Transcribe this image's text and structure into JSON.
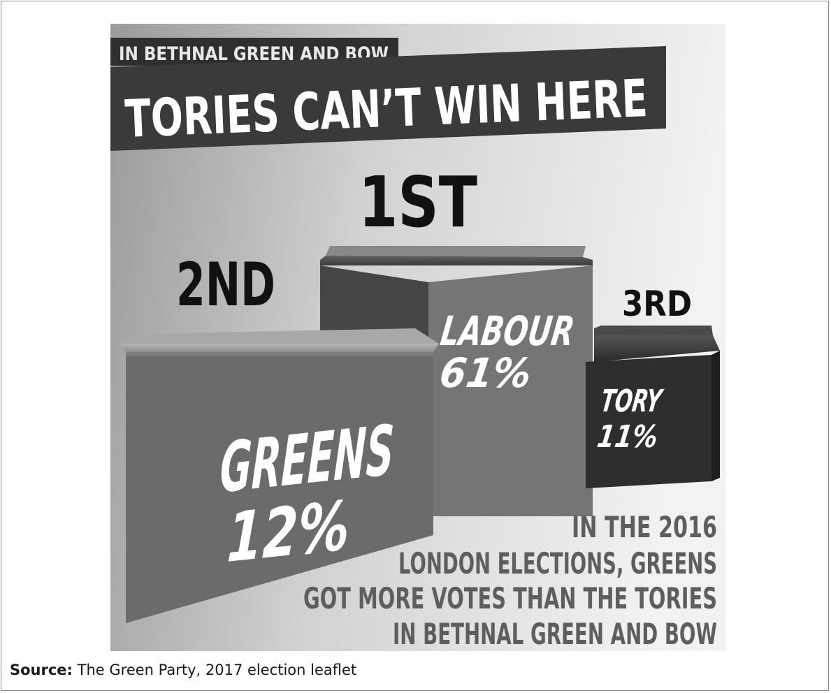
{
  "poster": {
    "subtitle": "IN BETHNAL GREEN AND BOW",
    "headline": "TORIES CAN’T WIN HERE",
    "colors": {
      "banner": "#3a3a3a",
      "greens_box": "#6b6b6b",
      "labour_box": "#757575",
      "tory_box": "#2e2e2e",
      "text_dark": "#111111",
      "note_text": "#5e5e5e"
    }
  },
  "podium": [
    {
      "rank": "2ND",
      "party": "GREENS",
      "share": "12%",
      "value": 12
    },
    {
      "rank": "1ST",
      "party": "LABOUR",
      "share": "61%",
      "value": 61
    },
    {
      "rank": "3RD",
      "party": "TORY",
      "share": "11%",
      "value": 11
    }
  ],
  "note": [
    "IN THE 2016",
    "LONDON ELECTIONS, GREENS",
    "GOT MORE VOTES THAN THE TORIES",
    "IN BETHNAL GREEN AND BOW"
  ],
  "source": {
    "label": "Source:",
    "text": "The Green Party, 2017 election leaflet"
  }
}
